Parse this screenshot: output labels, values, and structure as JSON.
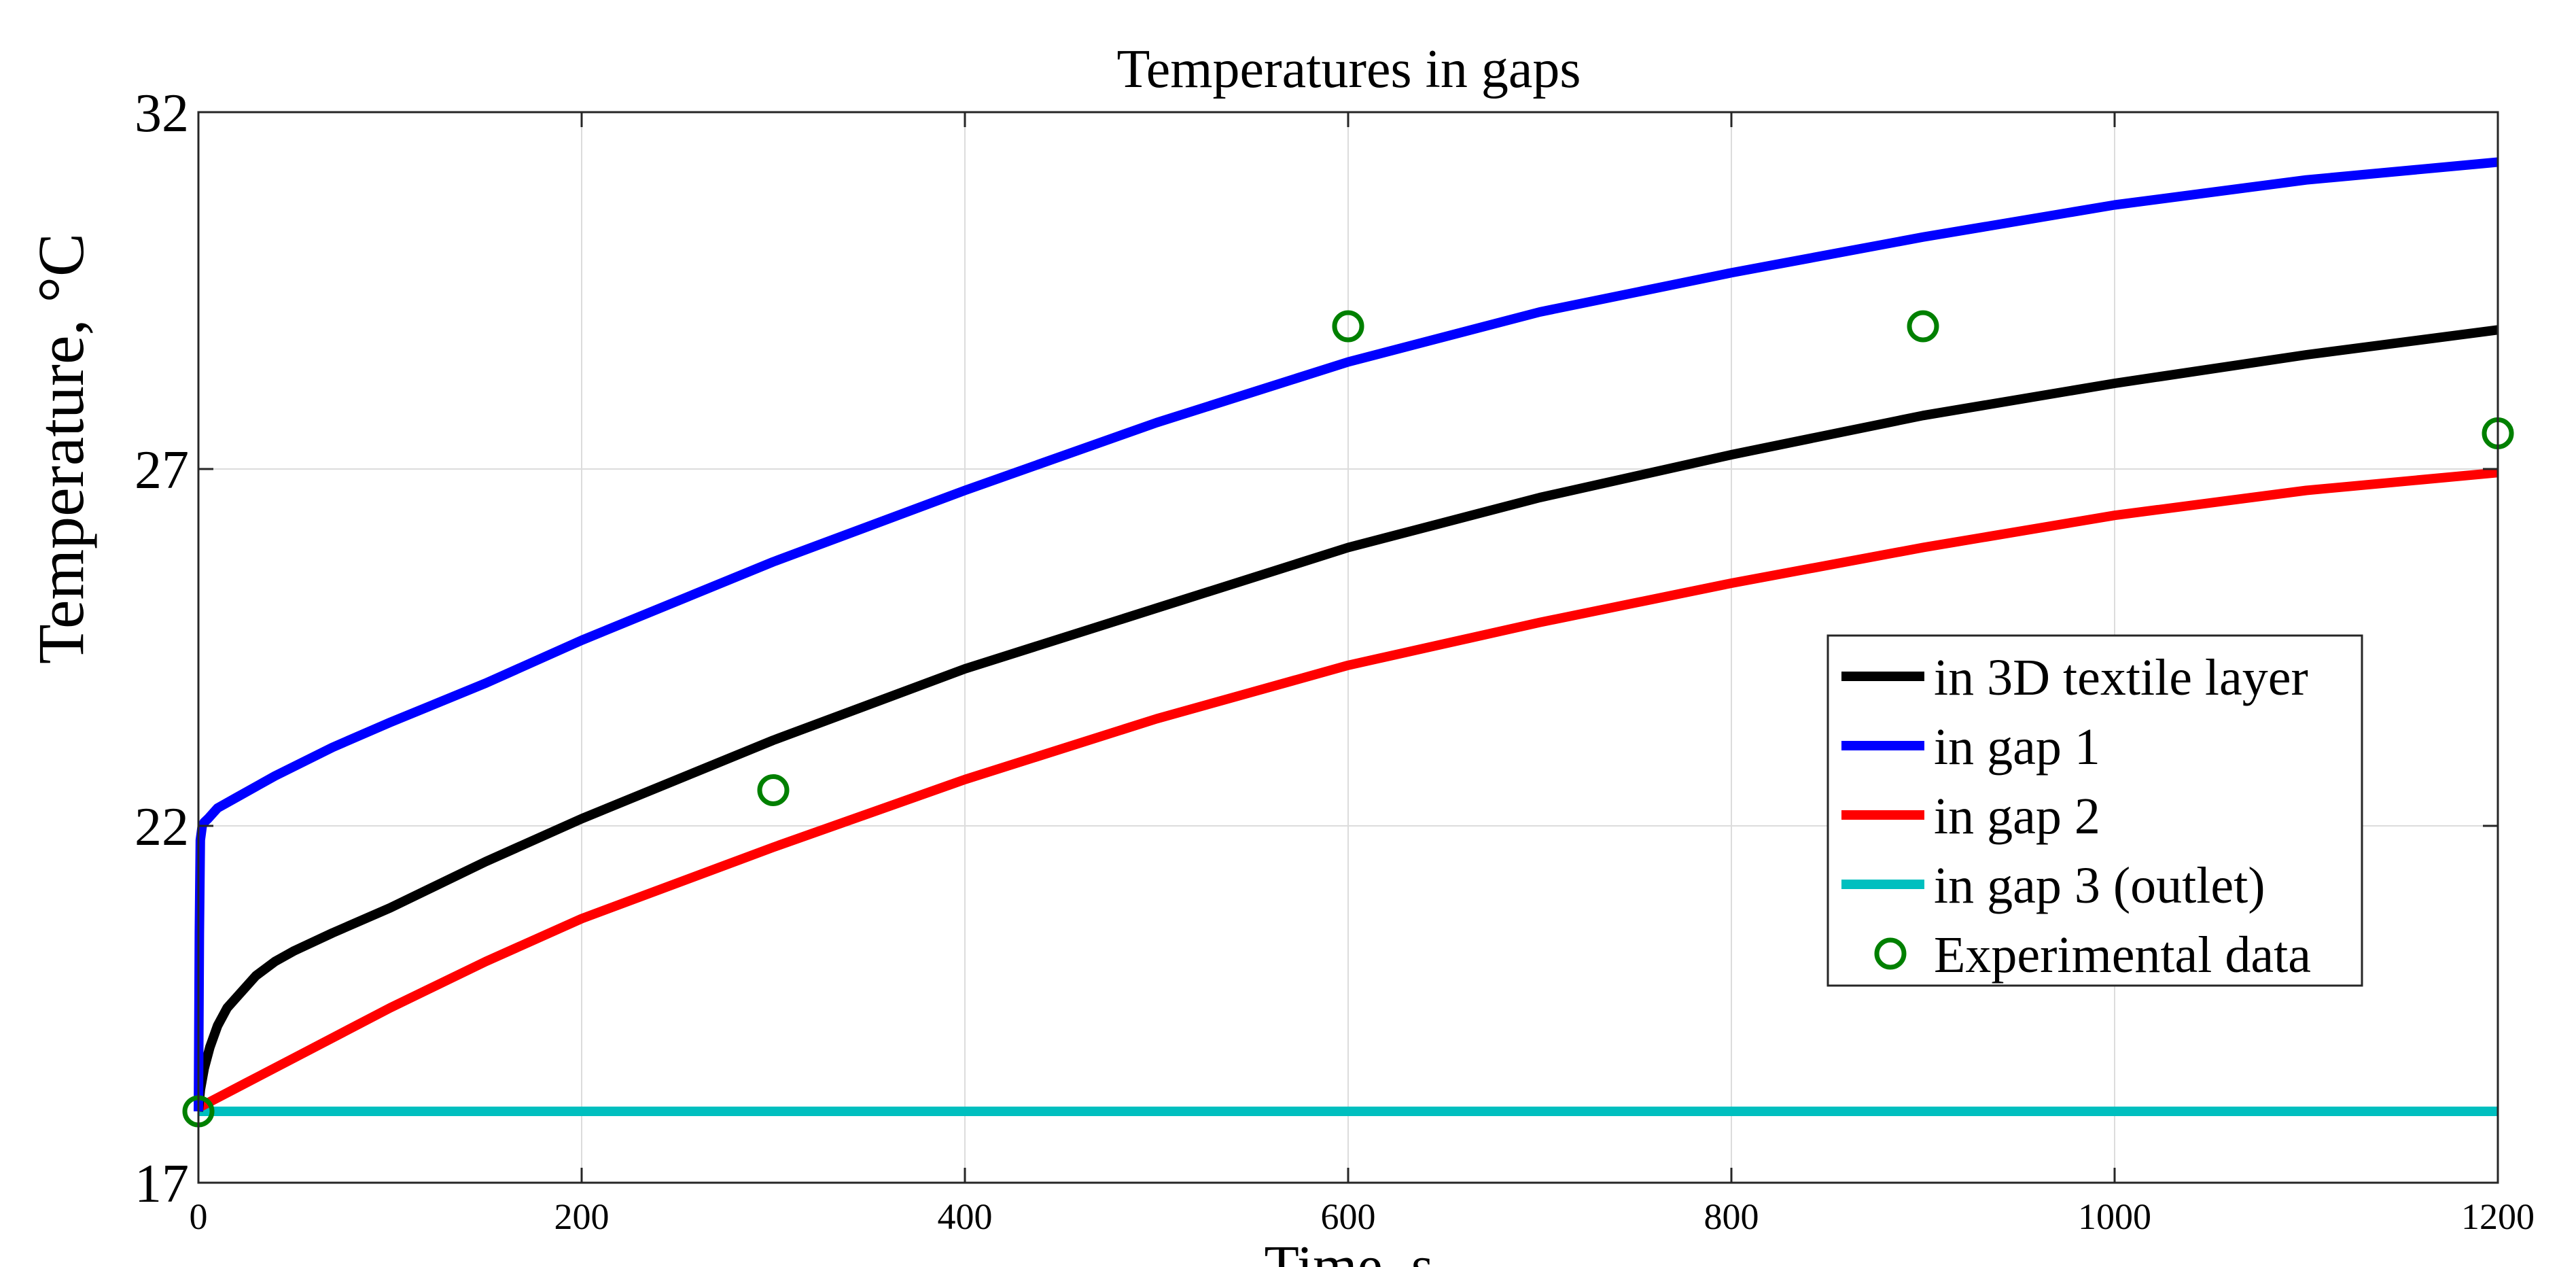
{
  "chart_data": {
    "type": "line",
    "title": "Temperatures in gaps",
    "xlabel": "Time, s",
    "ylabel": "Temperature, °C",
    "xlim": [
      0,
      1200
    ],
    "ylim": [
      17,
      32
    ],
    "xticks": [
      "0",
      "200",
      "400",
      "600",
      "800",
      "1000",
      "1200"
    ],
    "yticks": [
      "17",
      "22",
      "27",
      "32"
    ],
    "grid": true,
    "legend_position": "lower-right",
    "series": [
      {
        "name": "in 3D textile layer",
        "color": "#000000",
        "x": [
          0,
          1,
          3,
          6,
          10,
          15,
          20,
          30,
          40,
          50,
          70,
          100,
          150,
          200,
          300,
          400,
          500,
          600,
          700,
          800,
          900,
          1000,
          1100,
          1200
        ],
        "y": [
          18.0,
          18.3,
          18.6,
          18.9,
          19.2,
          19.45,
          19.6,
          19.9,
          20.1,
          20.25,
          20.5,
          20.85,
          21.5,
          22.1,
          23.2,
          24.2,
          25.05,
          25.9,
          26.6,
          27.2,
          27.75,
          28.2,
          28.6,
          28.95
        ]
      },
      {
        "name": "in gap  1",
        "color": "#0000ff",
        "x": [
          0,
          0.5,
          1,
          2,
          3,
          5,
          10,
          20,
          40,
          70,
          100,
          150,
          200,
          300,
          400,
          500,
          600,
          700,
          800,
          900,
          1000,
          1100,
          1200
        ],
        "y": [
          18.0,
          20.5,
          21.8,
          22.0,
          22.05,
          22.1,
          22.25,
          22.4,
          22.7,
          23.1,
          23.45,
          24.0,
          24.6,
          25.7,
          26.7,
          27.65,
          28.5,
          29.2,
          29.75,
          30.25,
          30.7,
          31.05,
          31.3
        ]
      },
      {
        "name": "in gap  2",
        "color": "#ff0000",
        "x": [
          0,
          25,
          50,
          100,
          150,
          200,
          300,
          400,
          500,
          600,
          700,
          800,
          900,
          1000,
          1100,
          1200
        ],
        "y": [
          18.05,
          18.4,
          18.75,
          19.45,
          20.1,
          20.7,
          21.7,
          22.65,
          23.5,
          24.25,
          24.85,
          25.4,
          25.9,
          26.35,
          26.7,
          26.95
        ]
      },
      {
        "name": "in gap  3 (outlet)",
        "color": "#00bfbf",
        "x": [
          0,
          1200
        ],
        "y": [
          18.0,
          18.0
        ]
      },
      {
        "name": "Experimental data",
        "color": "#008000",
        "marker": "circle",
        "x": [
          0,
          300,
          600,
          900,
          1200
        ],
        "y": [
          18.0,
          22.5,
          29.0,
          29.0,
          27.5
        ]
      }
    ]
  }
}
